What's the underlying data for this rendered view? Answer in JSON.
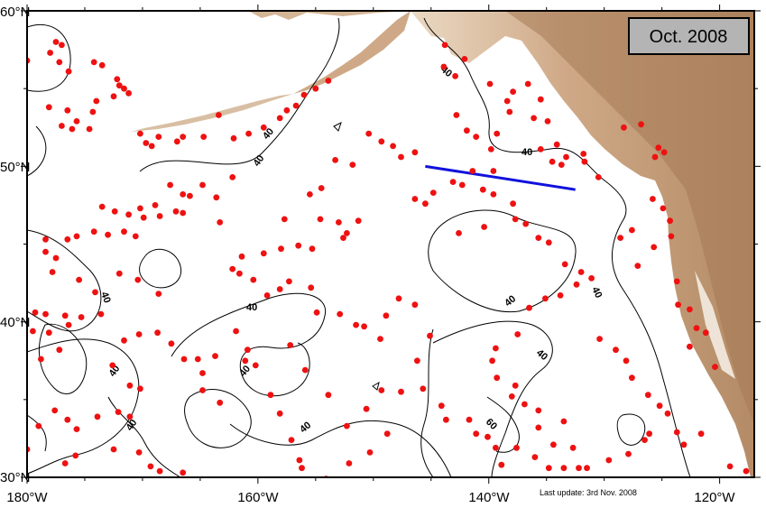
{
  "date_badge": "Oct. 2008",
  "update_note": "Last update: 3rd Nov. 2008",
  "axes": {
    "lat_ticks": [
      "60°N",
      "50°N",
      "40°N",
      "30°N"
    ],
    "lon_ticks": [
      "180°W",
      "160°W",
      "140°W",
      "120°W"
    ]
  },
  "colors": {
    "float": "#ee1111",
    "section_line": "#1111dd",
    "land_high": "#b88d68",
    "land_low": "#e8d8c4",
    "coastline": "#c8c8f0",
    "date_box": "#b4b4b4"
  },
  "contour_labels": [
    "40",
    "40",
    "40",
    "40",
    "40",
    "40",
    "40",
    "40",
    "40",
    "40",
    "40",
    "60",
    "40"
  ],
  "chart_data": {
    "type": "scatter",
    "title": "",
    "xlabel": "",
    "ylabel": "",
    "xlim": [
      -180,
      -117
    ],
    "ylim": [
      30,
      60
    ],
    "legend": "none",
    "section_line": [
      [
        -145.5,
        50
      ],
      [
        -132.5,
        48.5
      ]
    ],
    "floats": [
      [
        -180,
        56.8
      ],
      [
        -178,
        57.3
      ],
      [
        -177.5,
        58
      ],
      [
        -177,
        57.8
      ],
      [
        -177.2,
        56.7
      ],
      [
        -176.4,
        56.1
      ],
      [
        -174.2,
        56.7
      ],
      [
        -173.5,
        56.5
      ],
      [
        -172.2,
        55.6
      ],
      [
        -172,
        55.2
      ],
      [
        -171.6,
        55
      ],
      [
        -171.2,
        54.7
      ],
      [
        -178.1,
        53.8
      ],
      [
        -176.5,
        53.6
      ],
      [
        -175.7,
        52.9
      ],
      [
        -176.1,
        52.4
      ],
      [
        -177,
        52.6
      ],
      [
        -174.6,
        52.4
      ],
      [
        -174.3,
        53.5
      ],
      [
        -174,
        54.2
      ],
      [
        -172.5,
        54.5
      ],
      [
        -170.2,
        52.1
      ],
      [
        -169.7,
        51.5
      ],
      [
        -169.2,
        51.3
      ],
      [
        -168.6,
        51.9
      ],
      [
        -167,
        51.6
      ],
      [
        -166.5,
        51.9
      ],
      [
        -164.7,
        51.9
      ],
      [
        -163.4,
        53.3
      ],
      [
        -162.1,
        51.8
      ],
      [
        -160.8,
        52.1
      ],
      [
        -159.5,
        52.5
      ],
      [
        -158.1,
        53.1
      ],
      [
        -157.5,
        53.6
      ],
      [
        -156.7,
        53.9
      ],
      [
        -156,
        54.6
      ],
      [
        -155,
        55
      ],
      [
        -153.9,
        55.5
      ],
      [
        -173.5,
        47.4
      ],
      [
        -172.4,
        47.1
      ],
      [
        -171.2,
        46.9
      ],
      [
        -170.2,
        47.3
      ],
      [
        -168.9,
        47.5
      ],
      [
        -167.6,
        48.8
      ],
      [
        -166.5,
        48.2
      ],
      [
        -165.9,
        48.1
      ],
      [
        -164.8,
        48.8
      ],
      [
        -163.6,
        48
      ],
      [
        -162.2,
        49.3
      ],
      [
        -163.3,
        46.4
      ],
      [
        -176.5,
        45.3
      ],
      [
        -175.7,
        45.5
      ],
      [
        -174.2,
        45.8
      ],
      [
        -173,
        45.6
      ],
      [
        -171.6,
        45.8
      ],
      [
        -170.6,
        45.5
      ],
      [
        -169.9,
        46.7
      ],
      [
        -168.5,
        46.8
      ],
      [
        -166.5,
        47
      ],
      [
        -167.1,
        47.1
      ],
      [
        -178.4,
        45.3
      ],
      [
        -178.4,
        44.5
      ],
      [
        -177.5,
        44.1
      ],
      [
        -177.8,
        43.2
      ],
      [
        -175.5,
        42.7
      ],
      [
        -174.1,
        41.9
      ],
      [
        -172,
        43.1
      ],
      [
        -170.4,
        42.7
      ],
      [
        -168.6,
        41.8
      ],
      [
        -179.3,
        40.6
      ],
      [
        -178.4,
        40.5
      ],
      [
        -176.7,
        40.4
      ],
      [
        -176.4,
        39.8
      ],
      [
        -178.1,
        39.3
      ],
      [
        -177.2,
        38.2
      ],
      [
        -178.8,
        37.6
      ],
      [
        -179.5,
        39.4
      ],
      [
        -175.3,
        40.3
      ],
      [
        -173.6,
        40.5
      ],
      [
        -171.6,
        38.8
      ],
      [
        -170.3,
        39.2
      ],
      [
        -168.7,
        39.3
      ],
      [
        -167.5,
        38.6
      ],
      [
        -166.4,
        37.6
      ],
      [
        -165.2,
        37.6
      ],
      [
        -164.8,
        36.7
      ],
      [
        -163.7,
        37.8
      ],
      [
        -164.8,
        35.6
      ],
      [
        -163.3,
        34.8
      ],
      [
        -172.6,
        37.2
      ],
      [
        -171.1,
        35.9
      ],
      [
        -170.2,
        35.7
      ],
      [
        -172.1,
        34.2
      ],
      [
        -171.1,
        33.9
      ],
      [
        -172.5,
        31.8
      ],
      [
        -170.3,
        31.6
      ],
      [
        -169.3,
        30.7
      ],
      [
        -168.5,
        30.4
      ],
      [
        -166.5,
        30.3
      ],
      [
        -177.6,
        34.3
      ],
      [
        -176.5,
        33.7
      ],
      [
        -175.7,
        33.1
      ],
      [
        -173.9,
        33.9
      ],
      [
        -175.8,
        31.4
      ],
      [
        -176.7,
        30.9
      ],
      [
        -179,
        33.3
      ],
      [
        -180,
        31.8
      ],
      [
        -161.4,
        44.2
      ],
      [
        -162.2,
        43.4
      ],
      [
        -161.6,
        43.1
      ],
      [
        -160.4,
        42.7
      ],
      [
        -159.5,
        44.4
      ],
      [
        -158,
        44.7
      ],
      [
        -156.5,
        44.9
      ],
      [
        -155.3,
        44.7
      ],
      [
        -154.6,
        46.6
      ],
      [
        -153,
        46.4
      ],
      [
        -152.3,
        45.7
      ],
      [
        -151.3,
        46.5
      ],
      [
        -152.6,
        45.4
      ],
      [
        -157.7,
        46.6
      ],
      [
        -155.5,
        48.2
      ],
      [
        -154.5,
        48.6
      ],
      [
        -153.3,
        50.4
      ],
      [
        -151.8,
        50.1
      ],
      [
        -150.4,
        52.1
      ],
      [
        -149.3,
        51.6
      ],
      [
        -148.3,
        51.3
      ],
      [
        -147.6,
        50.6
      ],
      [
        -146.4,
        50.9
      ],
      [
        -159.2,
        41.7
      ],
      [
        -158.1,
        42.1
      ],
      [
        -157.3,
        42.6
      ],
      [
        -155.4,
        42.2
      ],
      [
        -154.9,
        40.6
      ],
      [
        -152.9,
        40.5
      ],
      [
        -151.5,
        39.8
      ],
      [
        -161.9,
        39.4
      ],
      [
        -160.9,
        38.2
      ],
      [
        -161.1,
        37.5
      ],
      [
        -160.2,
        37.2
      ],
      [
        -157.2,
        38.5
      ],
      [
        -155.9,
        36.9
      ],
      [
        -153.9,
        35.3
      ],
      [
        -152.3,
        33.3
      ],
      [
        -158.9,
        35.3
      ],
      [
        -158.1,
        34.1
      ],
      [
        -157.1,
        32.4
      ],
      [
        -156.4,
        31.1
      ],
      [
        -156.2,
        30.6
      ],
      [
        -154.1,
        29.9
      ],
      [
        -152.1,
        30.9
      ],
      [
        -150.3,
        31.6
      ],
      [
        -148.8,
        32.8
      ],
      [
        -150.6,
        34.4
      ],
      [
        -149.3,
        35.6
      ],
      [
        -147.6,
        35.5
      ],
      [
        -149.4,
        38.9
      ],
      [
        -150.8,
        39.7
      ],
      [
        -148.9,
        40.4
      ],
      [
        -147.8,
        41.5
      ],
      [
        -146.4,
        41.1
      ],
      [
        -145.1,
        39.1
      ],
      [
        -146.2,
        37.5
      ],
      [
        -145.7,
        35.7
      ],
      [
        -144.1,
        34.6
      ],
      [
        -143.7,
        33.7
      ],
      [
        -141.7,
        33.7
      ],
      [
        -141.1,
        32.8
      ],
      [
        -146.4,
        47.9
      ],
      [
        -145.5,
        47.6
      ],
      [
        -144.8,
        48.3
      ],
      [
        -143.1,
        49
      ],
      [
        -142.3,
        48.8
      ],
      [
        -141.4,
        49.7
      ],
      [
        -139.6,
        49.7
      ],
      [
        -140.5,
        48.5
      ],
      [
        -139.6,
        48.2
      ],
      [
        -137.9,
        47.6
      ],
      [
        -137.7,
        46.6
      ],
      [
        -140.4,
        46.1
      ],
      [
        -142.6,
        45.7
      ],
      [
        -142.8,
        53.3
      ],
      [
        -141.9,
        52.3
      ],
      [
        -141.1,
        51.9
      ],
      [
        -139.8,
        51.1
      ],
      [
        -139.3,
        52.1
      ],
      [
        -138.2,
        53.5
      ],
      [
        -137.9,
        54.8
      ],
      [
        -136.6,
        55.3
      ],
      [
        -135.5,
        54.3
      ],
      [
        -134.9,
        52.9
      ],
      [
        -134.1,
        51.4
      ],
      [
        -133.7,
        50.1
      ],
      [
        -143.9,
        56.4
      ],
      [
        -143.8,
        57.8
      ],
      [
        -142.9,
        55.8
      ],
      [
        -142.1,
        56.9
      ],
      [
        -139.9,
        55.3
      ],
      [
        -138.4,
        54.2
      ],
      [
        -136.1,
        53.1
      ],
      [
        -135.5,
        51.1
      ],
      [
        -134.5,
        50.3
      ],
      [
        -133.3,
        50.6
      ],
      [
        -131.8,
        50.8
      ],
      [
        -131.7,
        50.3
      ],
      [
        -130.5,
        49.3
      ],
      [
        -136.8,
        46.3
      ],
      [
        -135.7,
        45.4
      ],
      [
        -134.8,
        45.1
      ],
      [
        -133.4,
        43.7
      ],
      [
        -132,
        43.2
      ],
      [
        -131.1,
        42.8
      ],
      [
        -132.4,
        42.4
      ],
      [
        -133.8,
        41.7
      ],
      [
        -135.1,
        41.5
      ],
      [
        -136.5,
        40.9
      ],
      [
        -137.5,
        39.2
      ],
      [
        -139.4,
        38.3
      ],
      [
        -139.7,
        37.5
      ],
      [
        -139.3,
        36.4
      ],
      [
        -137.7,
        35.9
      ],
      [
        -138,
        35.2
      ],
      [
        -136.9,
        34.7
      ],
      [
        -135.7,
        34.3
      ],
      [
        -135.7,
        33.2
      ],
      [
        -133.5,
        33.6
      ],
      [
        -134.4,
        32.1
      ],
      [
        -132.7,
        31.9
      ],
      [
        -132.2,
        30.6
      ],
      [
        -140.1,
        32.6
      ],
      [
        -139.4,
        31.9
      ],
      [
        -138.9,
        30.8
      ],
      [
        -137.6,
        31.9
      ],
      [
        -136,
        31.3
      ],
      [
        -134.8,
        30.6
      ],
      [
        -133.5,
        30.6
      ],
      [
        -131.5,
        30.6
      ],
      [
        -129.6,
        31.1
      ],
      [
        -127.9,
        31.5
      ],
      [
        -126.5,
        32.4
      ],
      [
        -126.1,
        32.8
      ],
      [
        -130.4,
        38.9
      ],
      [
        -129,
        38.2
      ],
      [
        -128.1,
        37.5
      ],
      [
        -127.6,
        36.4
      ],
      [
        -126.2,
        35.3
      ],
      [
        -125.2,
        34.6
      ],
      [
        -124.5,
        34.1
      ],
      [
        -123.7,
        32.9
      ],
      [
        -123.1,
        32.1
      ],
      [
        -121.6,
        32.8
      ],
      [
        -119.1,
        30.7
      ],
      [
        -117.7,
        30.4
      ],
      [
        -128.6,
        45.4
      ],
      [
        -127.6,
        45.9
      ],
      [
        -127.1,
        43.6
      ],
      [
        -125.7,
        44.8
      ],
      [
        -124.2,
        45.5
      ],
      [
        -123.7,
        42.6
      ],
      [
        -123.6,
        41.1
      ],
      [
        -122.6,
        40.8
      ],
      [
        -122,
        39.6
      ],
      [
        -121.2,
        39.3
      ],
      [
        -122.6,
        38.4
      ],
      [
        -120.4,
        37.1
      ],
      [
        -125.8,
        47.9
      ],
      [
        -124.9,
        47.3
      ],
      [
        -124.3,
        46.5
      ],
      [
        -128.3,
        52.5
      ],
      [
        -126.8,
        52.7
      ],
      [
        -125.3,
        51.2
      ],
      [
        -125.6,
        50.6
      ],
      [
        -124.8,
        50.9
      ]
    ]
  }
}
